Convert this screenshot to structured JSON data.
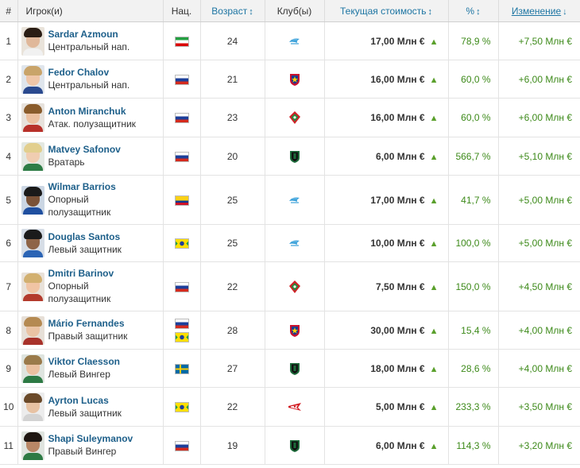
{
  "headers": {
    "num": "#",
    "player": "Игрок(и)",
    "nat": "Нац.",
    "age": "Возраст",
    "club": "Клуб(ы)",
    "value": "Текущая стоимость",
    "pct": "%",
    "change": "Изменение",
    "sort_icon": "↕",
    "sort_desc_icon": "↓"
  },
  "arrow_up": "▲",
  "rows": [
    {
      "num": "1",
      "name": "Sardar Azmoun",
      "pos": "Центральный нап.",
      "flags": [
        "iran"
      ],
      "age": "24",
      "club": "zenit",
      "value": "17,00 Млн €",
      "pct": "78,9 %",
      "change": "+7,50 Млн €"
    },
    {
      "num": "2",
      "name": "Fedor Chalov",
      "pos": "Центральный нап.",
      "flags": [
        "russia"
      ],
      "age": "21",
      "club": "cska",
      "value": "16,00 Млн €",
      "pct": "60,0 %",
      "change": "+6,00 Млн €"
    },
    {
      "num": "3",
      "name": "Anton Miranchuk",
      "pos": "Атак. полузащитник",
      "flags": [
        "russia"
      ],
      "age": "23",
      "club": "lokomotiv",
      "value": "16,00 Млн €",
      "pct": "60,0 %",
      "change": "+6,00 Млн €"
    },
    {
      "num": "4",
      "name": "Matvey Safonov",
      "pos": "Вратарь",
      "flags": [
        "russia"
      ],
      "age": "20",
      "club": "krasnodar",
      "value": "6,00 Млн €",
      "pct": "566,7 %",
      "change": "+5,10 Млн €"
    },
    {
      "num": "5",
      "name": "Wilmar Barrios",
      "pos": "Опорный полузащитник",
      "flags": [
        "colombia"
      ],
      "age": "25",
      "club": "zenit",
      "value": "17,00 Млн €",
      "pct": "41,7 %",
      "change": "+5,00 Млн €"
    },
    {
      "num": "6",
      "name": "Douglas Santos",
      "pos": "Левый защитник",
      "flags": [
        "brazil"
      ],
      "age": "25",
      "club": "zenit",
      "value": "10,00 Млн €",
      "pct": "100,0 %",
      "change": "+5,00 Млн €"
    },
    {
      "num": "7",
      "name": "Dmitri Barinov",
      "pos": "Опорный полузащитник",
      "flags": [
        "russia"
      ],
      "age": "22",
      "club": "lokomotiv",
      "value": "7,50 Млн €",
      "pct": "150,0 %",
      "change": "+4,50 Млн €"
    },
    {
      "num": "8",
      "name": "Mário Fernandes",
      "pos": "Правый защитник",
      "flags": [
        "russia",
        "brazil"
      ],
      "age": "28",
      "club": "cska",
      "value": "30,00 Млн €",
      "pct": "15,4 %",
      "change": "+4,00 Млн €"
    },
    {
      "num": "9",
      "name": "Viktor Claesson",
      "pos": "Левый Вингер",
      "flags": [
        "sweden"
      ],
      "age": "27",
      "club": "krasnodar",
      "value": "18,00 Млн €",
      "pct": "28,6 %",
      "change": "+4,00 Млн €"
    },
    {
      "num": "10",
      "name": "Ayrton Lucas",
      "pos": "Левый защитник",
      "flags": [
        "brazil"
      ],
      "age": "22",
      "club": "spartak",
      "value": "5,00 Млн €",
      "pct": "233,3 %",
      "change": "+3,50 Млн €"
    },
    {
      "num": "11",
      "name": "Shapi Suleymanov",
      "pos": "Правый Вингер",
      "flags": [
        "russia"
      ],
      "age": "19",
      "club": "krasnodar",
      "value": "6,00 Млн €",
      "pct": "114,3 %",
      "change": "+3,20 Млн €"
    }
  ],
  "colors": {
    "link": "#1d5f8a",
    "header_link": "#1d75a3",
    "positive": "#3d8a1a",
    "arrow": "#5aa02c"
  }
}
